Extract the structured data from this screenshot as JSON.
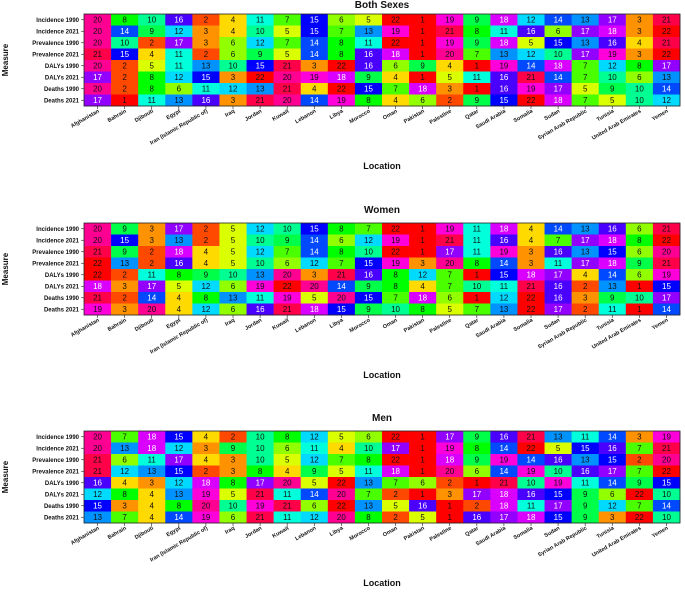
{
  "chart_data": [
    {
      "type": "heatmap",
      "title": "Both Sexes",
      "xlabel": "Location",
      "ylabel": "Measure",
      "colorscale": "rank 1 (red) to 22 (red) via yellow, green, cyan, blue, purple, magenta",
      "rows": [
        "Incidence 1990",
        "Incidence 2021",
        "Prevalence 1990",
        "Prevalence 2021",
        "DALYs 1990",
        "DALYs 2021",
        "Deaths 1990",
        "Deaths 2021"
      ],
      "columns": [
        "Afghanistan",
        "Bahrain",
        "Djibouti",
        "Egypt",
        "Iran (Islamic Republic of)",
        "Iraq",
        "Jordan",
        "Kuwait",
        "Lebanon",
        "Libya",
        "Morocco",
        "Oman",
        "Pakistan",
        "Palestine",
        "Qatar",
        "Saudi Arabia",
        "Somalia",
        "Sudan",
        "Syrian Arab Republic",
        "Tunisia",
        "United Arab Emirates",
        "Yemen"
      ],
      "values": [
        [
          20,
          8,
          10,
          16,
          2,
          4,
          11,
          7,
          15,
          6,
          5,
          22,
          1,
          19,
          9,
          18,
          12,
          14,
          13,
          17,
          3,
          21
        ],
        [
          20,
          14,
          9,
          12,
          3,
          4,
          10,
          5,
          15,
          7,
          13,
          19,
          1,
          21,
          8,
          11,
          16,
          6,
          17,
          18,
          3,
          22
        ],
        [
          20,
          10,
          2,
          17,
          3,
          6,
          12,
          7,
          14,
          8,
          11,
          22,
          1,
          19,
          9,
          18,
          5,
          15,
          13,
          16,
          4,
          21
        ],
        [
          21,
          15,
          4,
          11,
          2,
          6,
          9,
          5,
          14,
          8,
          16,
          18,
          1,
          20,
          7,
          13,
          12,
          10,
          17,
          19,
          3,
          22
        ],
        [
          20,
          2,
          5,
          11,
          13,
          10,
          15,
          21,
          3,
          22,
          16,
          6,
          9,
          4,
          1,
          19,
          14,
          18,
          7,
          12,
          8,
          17
        ],
        [
          17,
          2,
          8,
          12,
          15,
          3,
          22,
          20,
          19,
          18,
          9,
          4,
          1,
          5,
          11,
          16,
          21,
          14,
          7,
          10,
          6,
          13
        ],
        [
          20,
          2,
          8,
          6,
          11,
          12,
          13,
          21,
          4,
          22,
          15,
          7,
          18,
          3,
          1,
          16,
          19,
          17,
          5,
          9,
          10,
          14
        ],
        [
          17,
          1,
          11,
          13,
          16,
          3,
          21,
          20,
          14,
          19,
          8,
          4,
          6,
          2,
          9,
          15,
          22,
          18,
          7,
          5,
          10,
          12
        ]
      ]
    },
    {
      "type": "heatmap",
      "title": "Women",
      "xlabel": "Location",
      "ylabel": "Measure",
      "rows": [
        "Incidence 1990",
        "Incidence 2021",
        "Prevalence 1990",
        "Prevalence 2021",
        "DALYs 1990",
        "DALYs 2021",
        "Deaths 1990",
        "Deaths 2021"
      ],
      "columns": [
        "Afghanistan",
        "Bahrain",
        "Djibouti",
        "Egypt",
        "Iran (Islamic Republic of)",
        "Iraq",
        "Jordan",
        "Kuwait",
        "Lebanon",
        "Libya",
        "Morocco",
        "Oman",
        "Pakistan",
        "Palestine",
        "Qatar",
        "Saudi Arabia",
        "Somalia",
        "Sudan",
        "Syrian Arab Republic",
        "Tunisia",
        "United Arab Emirates",
        "Yemen"
      ],
      "values": [
        [
          20,
          9,
          3,
          17,
          2,
          5,
          12,
          10,
          15,
          8,
          7,
          22,
          1,
          19,
          11,
          18,
          4,
          14,
          13,
          16,
          6,
          21
        ],
        [
          20,
          15,
          3,
          13,
          2,
          5,
          10,
          9,
          14,
          6,
          12,
          19,
          1,
          21,
          11,
          16,
          4,
          7,
          17,
          18,
          8,
          22
        ],
        [
          21,
          9,
          2,
          18,
          4,
          5,
          12,
          7,
          14,
          8,
          10,
          22,
          1,
          17,
          11,
          19,
          3,
          16,
          13,
          15,
          6,
          20
        ],
        [
          22,
          13,
          2,
          16,
          4,
          5,
          10,
          6,
          12,
          7,
          15,
          19,
          3,
          20,
          8,
          14,
          3,
          11,
          17,
          18,
          9,
          21
        ],
        [
          22,
          2,
          11,
          8,
          9,
          10,
          13,
          20,
          3,
          21,
          16,
          8,
          12,
          7,
          1,
          15,
          18,
          17,
          4,
          14,
          6,
          19
        ],
        [
          18,
          3,
          17,
          5,
          12,
          6,
          19,
          22,
          20,
          14,
          9,
          8,
          4,
          7,
          10,
          11,
          21,
          16,
          2,
          13,
          1,
          15
        ],
        [
          21,
          2,
          14,
          4,
          8,
          13,
          11,
          19,
          5,
          20,
          15,
          7,
          18,
          6,
          1,
          12,
          22,
          16,
          3,
          9,
          10,
          17
        ],
        [
          19,
          3,
          20,
          4,
          12,
          6,
          16,
          21,
          18,
          15,
          9,
          10,
          8,
          5,
          7,
          13,
          22,
          17,
          2,
          11,
          1,
          14
        ]
      ]
    },
    {
      "type": "heatmap",
      "title": "Men",
      "xlabel": "Location",
      "ylabel": "Measure",
      "rows": [
        "Incidence 1990",
        "Incidence 2021",
        "Prevalence 1990",
        "Prevalence 2021",
        "DALYs 1990",
        "DALYs 2021",
        "Deaths 1990",
        "Deaths 2021"
      ],
      "columns": [
        "Afghanistan",
        "Bahrain",
        "Djibouti",
        "Egypt",
        "Iran (Islamic Republic of)",
        "Iraq",
        "Jordan",
        "Kuwait",
        "Lebanon",
        "Libya",
        "Morocco",
        "Oman",
        "Pakistan",
        "Palestine",
        "Qatar",
        "Saudi Arabia",
        "Somalia",
        "Sudan",
        "Syrian Arab Republic",
        "Tunisia",
        "United Arab Emirates",
        "Yemen"
      ],
      "values": [
        [
          20,
          7,
          18,
          15,
          4,
          2,
          10,
          8,
          12,
          5,
          6,
          22,
          1,
          17,
          9,
          16,
          21,
          13,
          11,
          14,
          3,
          19
        ],
        [
          20,
          13,
          18,
          12,
          3,
          9,
          10,
          6,
          11,
          4,
          10,
          17,
          1,
          19,
          8,
          14,
          22,
          5,
          15,
          16,
          7,
          21
        ],
        [
          21,
          6,
          11,
          17,
          4,
          3,
          10,
          5,
          12,
          7,
          8,
          22,
          1,
          18,
          9,
          19,
          14,
          16,
          13,
          15,
          2,
          20
        ],
        [
          21,
          12,
          13,
          15,
          2,
          3,
          8,
          4,
          9,
          5,
          11,
          18,
          1,
          20,
          6,
          14,
          19,
          10,
          16,
          17,
          7,
          22
        ],
        [
          16,
          4,
          3,
          12,
          18,
          8,
          17,
          20,
          5,
          22,
          13,
          7,
          6,
          2,
          1,
          21,
          10,
          19,
          11,
          14,
          9,
          15
        ],
        [
          12,
          8,
          4,
          13,
          19,
          5,
          21,
          11,
          14,
          20,
          7,
          2,
          1,
          3,
          17,
          18,
          16,
          15,
          9,
          6,
          22,
          10
        ],
        [
          15,
          3,
          4,
          8,
          20,
          10,
          19,
          21,
          6,
          22,
          13,
          5,
          16,
          1,
          2,
          18,
          11,
          17,
          9,
          12,
          7,
          14
        ],
        [
          13,
          7,
          4,
          14,
          19,
          6,
          21,
          11,
          12,
          20,
          8,
          2,
          5,
          1,
          16,
          17,
          18,
          15,
          9,
          3,
          22,
          10
        ]
      ]
    }
  ]
}
